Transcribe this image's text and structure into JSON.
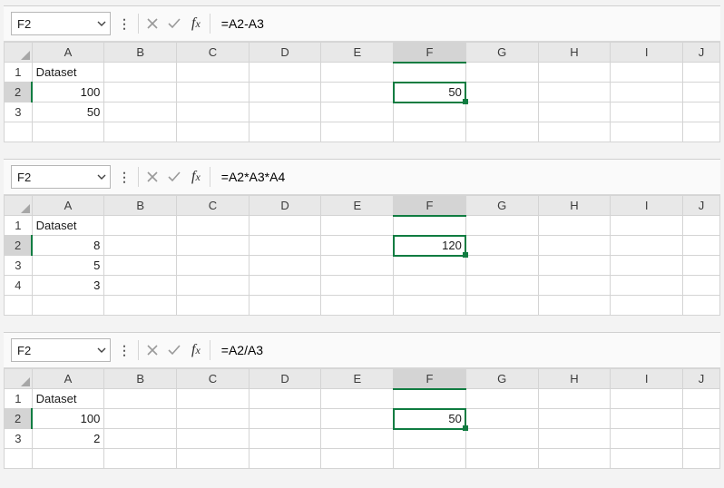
{
  "columns": [
    "A",
    "B",
    "C",
    "D",
    "E",
    "F",
    "G",
    "H",
    "I",
    "J"
  ],
  "panes": [
    {
      "nameBox": "F2",
      "formula": "=A2-A3",
      "activeCol": "F",
      "activeRowIndex": 1,
      "rows": [
        {
          "num": "1",
          "A": "Dataset",
          "A_align": "left"
        },
        {
          "num": "2",
          "A": "100",
          "A_align": "right",
          "F": "50",
          "active": true
        },
        {
          "num": "3",
          "A": "50",
          "A_align": "right"
        },
        {
          "num": "4",
          "partial": true
        }
      ]
    },
    {
      "nameBox": "F2",
      "formula": "=A2*A3*A4",
      "activeCol": "F",
      "activeRowIndex": 1,
      "rows": [
        {
          "num": "1",
          "A": "Dataset",
          "A_align": "left"
        },
        {
          "num": "2",
          "A": "8",
          "A_align": "right",
          "F": "120",
          "active": true
        },
        {
          "num": "3",
          "A": "5",
          "A_align": "right"
        },
        {
          "num": "4",
          "A": "3",
          "A_align": "right"
        },
        {
          "num": "5",
          "partial": true
        }
      ]
    },
    {
      "nameBox": "F2",
      "formula": "=A2/A3",
      "activeCol": "F",
      "activeRowIndex": 1,
      "rows": [
        {
          "num": "1",
          "A": "Dataset",
          "A_align": "left"
        },
        {
          "num": "2",
          "A": "100",
          "A_align": "right",
          "F": "50",
          "active": true
        },
        {
          "num": "3",
          "A": "2",
          "A_align": "right"
        },
        {
          "num": "4",
          "partial": true
        }
      ]
    }
  ]
}
